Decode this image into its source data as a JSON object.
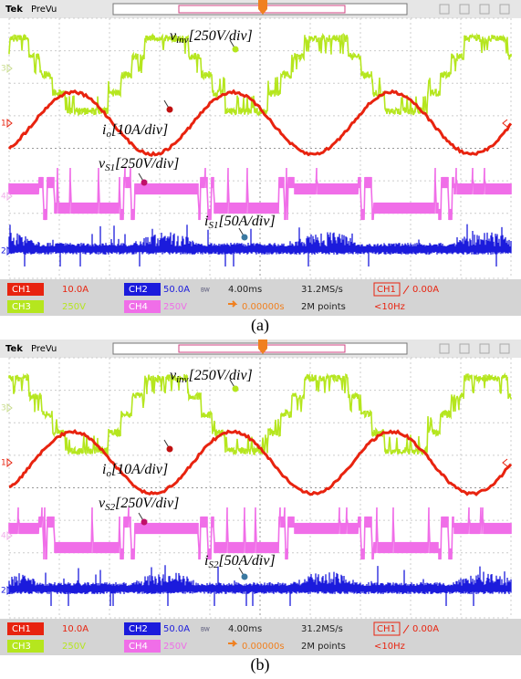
{
  "panels": [
    {
      "header": {
        "brand": "Tek",
        "mode": "PreVu"
      },
      "markers": [
        "3",
        "1",
        "4",
        "2"
      ],
      "annotations": [
        {
          "symbol": "v",
          "subscript": "inv",
          "scale": "[250V/div]"
        },
        {
          "symbol": "i",
          "subscript": "o",
          "scale": "[10A/div]"
        },
        {
          "symbol": "v",
          "subscript": "S1",
          "scale": "[250V/div]"
        },
        {
          "symbol": "i",
          "subscript": "S1",
          "scale": "[50A/div]"
        }
      ],
      "status": {
        "ch1": "CH1",
        "ch1_scale": "10.0A",
        "ch2": "CH2",
        "ch2_scale": "50.0A",
        "bw": "BW",
        "timebase": "4.00ms",
        "sample_rate": "31.2MS/s",
        "trigger_ch": "CH1",
        "trigger_level": "0.00A",
        "ch3": "CH3",
        "ch3_scale": "250V",
        "ch4": "CH4",
        "ch4_scale": "250V",
        "position": "0.00000s",
        "record": "2M points",
        "frequency": "<10Hz"
      },
      "caption": "(a)"
    },
    {
      "header": {
        "brand": "Tek",
        "mode": "PreVu"
      },
      "markers": [
        "3",
        "1",
        "4",
        "2"
      ],
      "annotations": [
        {
          "symbol": "v",
          "subscript": "inv",
          "scale": "[250V/div]"
        },
        {
          "symbol": "i",
          "subscript": "o",
          "scale": "[10A/div]"
        },
        {
          "symbol": "v",
          "subscript": "S2",
          "scale": "[250V/div]"
        },
        {
          "symbol": "i",
          "subscript": "S2",
          "scale": "[50A/div]"
        }
      ],
      "status": {
        "ch1": "CH1",
        "ch1_scale": "10.0A",
        "ch2": "CH2",
        "ch2_scale": "50.0A",
        "bw": "BW",
        "timebase": "4.00ms",
        "sample_rate": "31.2MS/s",
        "trigger_ch": "CH1",
        "trigger_level": "0.00A",
        "ch3": "CH3",
        "ch3_scale": "250V",
        "ch4": "CH4",
        "ch4_scale": "250V",
        "position": "0.00000s",
        "record": "2M points",
        "frequency": "<10Hz"
      },
      "caption": "(b)"
    }
  ]
}
